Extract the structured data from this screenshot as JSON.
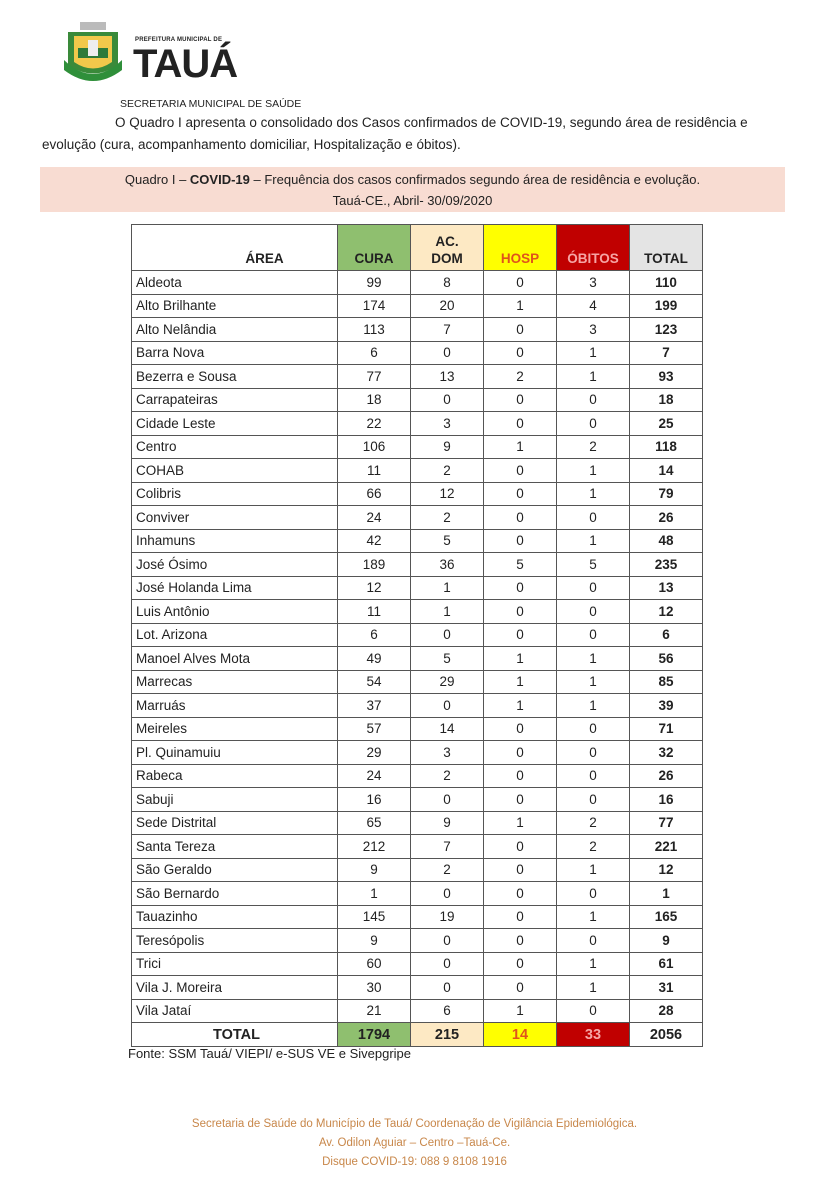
{
  "header": {
    "logo_small_text": "PREFEITURA MUNICIPAL DE",
    "logo_text": "TAUÁ",
    "department": "SECRETARIA MUNICIPAL DE SAÚDE"
  },
  "intro": "O Quadro I apresenta o consolidado dos Casos confirmados de COVID-19, segundo área de residência e evolução (cura, acompanhamento domiciliar, Hospitalização e óbitos).",
  "caption": {
    "prefix": "Quadro I – ",
    "bold": "COVID-19",
    "rest": " – Frequência dos casos confirmados segundo área de residência e evolução.",
    "line2": "Tauá-CE., Abril- 30/09/2020"
  },
  "colors": {
    "cura": "#8fbf6f",
    "acdom": "#fde9c4",
    "hosp": "#ffff00",
    "obitos": "#c00000",
    "total": "#e4e4e4",
    "caption_bg": "#f8dcd2"
  },
  "table": {
    "headers": {
      "area": "ÁREA",
      "cura": "CURA",
      "acdom_1": "AC.",
      "acdom_2": "DOM",
      "hosp": "HOSP",
      "obitos": "ÓBITOS",
      "total": "TOTAL"
    },
    "rows": [
      [
        "Aldeota",
        99,
        8,
        0,
        3,
        110
      ],
      [
        "Alto Brilhante",
        174,
        20,
        1,
        4,
        199
      ],
      [
        "Alto Nelândia",
        113,
        7,
        0,
        3,
        123
      ],
      [
        "Barra Nova",
        6,
        0,
        0,
        1,
        7
      ],
      [
        "Bezerra e Sousa",
        77,
        13,
        2,
        1,
        93
      ],
      [
        "Carrapateiras",
        18,
        0,
        0,
        0,
        18
      ],
      [
        "Cidade Leste",
        22,
        3,
        0,
        0,
        25
      ],
      [
        "Centro",
        106,
        9,
        1,
        2,
        118
      ],
      [
        "COHAB",
        11,
        2,
        0,
        1,
        14
      ],
      [
        "Colibris",
        66,
        12,
        0,
        1,
        79
      ],
      [
        "Conviver",
        24,
        2,
        0,
        0,
        26
      ],
      [
        "Inhamuns",
        42,
        5,
        0,
        1,
        48
      ],
      [
        "José Ósimo",
        189,
        36,
        5,
        5,
        235
      ],
      [
        "José Holanda Lima",
        12,
        1,
        0,
        0,
        13
      ],
      [
        "Luis Antônio",
        11,
        1,
        0,
        0,
        12
      ],
      [
        "Lot. Arizona",
        6,
        0,
        0,
        0,
        6
      ],
      [
        "Manoel Alves Mota",
        49,
        5,
        1,
        1,
        56
      ],
      [
        "Marrecas",
        54,
        29,
        1,
        1,
        85
      ],
      [
        "Marruás",
        37,
        0,
        1,
        1,
        39
      ],
      [
        "Meireles",
        57,
        14,
        0,
        0,
        71
      ],
      [
        "Pl. Quinamuiu",
        29,
        3,
        0,
        0,
        32
      ],
      [
        "Rabeca",
        24,
        2,
        0,
        0,
        26
      ],
      [
        "Sabuji",
        16,
        0,
        0,
        0,
        16
      ],
      [
        "Sede Distrital",
        65,
        9,
        1,
        2,
        77
      ],
      [
        "Santa Tereza",
        212,
        7,
        0,
        2,
        221
      ],
      [
        "São Geraldo",
        9,
        2,
        0,
        1,
        12
      ],
      [
        "São Bernardo",
        1,
        0,
        0,
        0,
        1
      ],
      [
        "Tauazinho",
        145,
        19,
        0,
        1,
        165
      ],
      [
        "Teresópolis",
        9,
        0,
        0,
        0,
        9
      ],
      [
        "Trici",
        60,
        0,
        0,
        1,
        61
      ],
      [
        "Vila J. Moreira",
        30,
        0,
        0,
        1,
        31
      ],
      [
        "Vila Jataí",
        21,
        6,
        1,
        0,
        28
      ]
    ],
    "total_row": [
      "TOTAL",
      1794,
      215,
      14,
      33,
      2056
    ]
  },
  "source": "Fonte: SSM Tauá/ VIEPI/ e-SUS VE e Sivepgripe",
  "footer": {
    "line1": "Secretaria de Saúde do Município de Tauá/ Coordenação de Vigilância Epidemiológica.",
    "line2": "Av. Odilon Aguiar – Centro –Tauá-Ce.",
    "line3": "Disque COVID-19: 088 9 8108 1916"
  }
}
